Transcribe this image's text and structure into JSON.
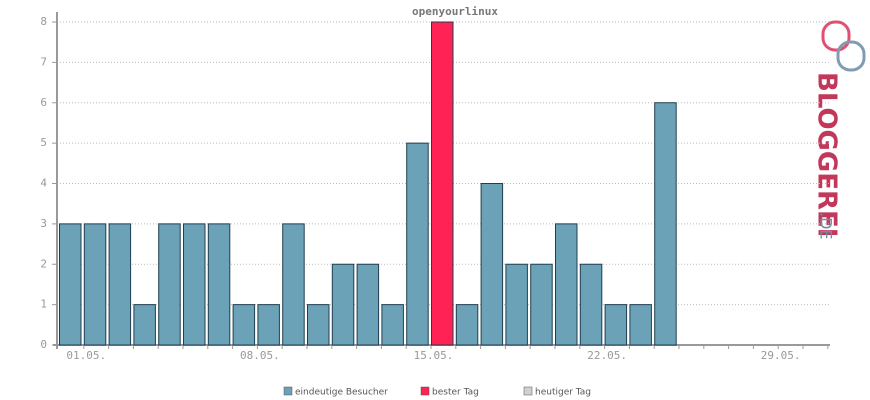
{
  "chart_data": {
    "type": "bar",
    "title": "openyourlinux",
    "categories": [
      "01.05.",
      null,
      null,
      null,
      null,
      null,
      null,
      "08.05.",
      null,
      null,
      null,
      null,
      null,
      null,
      "15.05.",
      null,
      null,
      null,
      null,
      null,
      null,
      "22.05.",
      null,
      null,
      null,
      null,
      null,
      null,
      "29.05.",
      null,
      null
    ],
    "values": [
      3,
      3,
      3,
      1,
      3,
      3,
      3,
      1,
      1,
      3,
      1,
      2,
      2,
      1,
      5,
      8,
      1,
      4,
      2,
      2,
      3,
      2,
      1,
      1,
      6,
      null,
      null,
      null,
      null,
      null,
      null
    ],
    "bar_colors": [
      "#6ca2b8",
      "#6ca2b8",
      "#6ca2b8",
      "#6ca2b8",
      "#6ca2b8",
      "#6ca2b8",
      "#6ca2b8",
      "#6ca2b8",
      "#6ca2b8",
      "#6ca2b8",
      "#6ca2b8",
      "#6ca2b8",
      "#6ca2b8",
      "#6ca2b8",
      "#6ca2b8",
      "#ff2255",
      "#6ca2b8",
      "#6ca2b8",
      "#6ca2b8",
      "#6ca2b8",
      "#6ca2b8",
      "#6ca2b8",
      "#6ca2b8",
      "#6ca2b8",
      "#6ca2b8",
      "#6ca2b8",
      "#6ca2b8",
      "#6ca2b8",
      "#6ca2b8",
      "#6ca2b8",
      "#6ca2b8"
    ],
    "legend": [
      {
        "name": "eindeutige Besucher",
        "color": "#6ca2b8"
      },
      {
        "name": "bester Tag",
        "color": "#ff2255"
      },
      {
        "name": "heutiger Tag",
        "color": "#d0d0d0"
      }
    ],
    "ylim": [
      0,
      8
    ],
    "yticks": [
      0,
      1,
      2,
      3,
      4,
      5,
      6,
      7,
      8
    ],
    "grid": true
  },
  "logo": {
    "name": "BLOGGEREI",
    "domain": ".DE"
  }
}
